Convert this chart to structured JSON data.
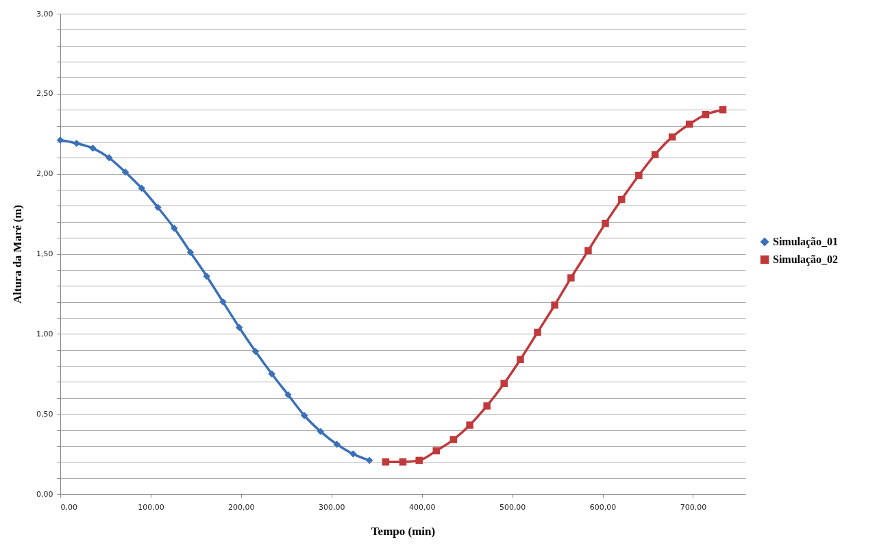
{
  "chart_data": {
    "type": "line",
    "xlabel": "Tempo (min)",
    "ylabel": "Altura da Maré (m)",
    "xlim": [
      0,
      758
    ],
    "ylim": [
      0,
      3
    ],
    "xticks": [
      {
        "value": 0,
        "label": "0,00"
      },
      {
        "value": 100,
        "label": "100,00"
      },
      {
        "value": 200,
        "label": "200,00"
      },
      {
        "value": 300,
        "label": "300,00"
      },
      {
        "value": 400,
        "label": "400,00"
      },
      {
        "value": 500,
        "label": "500,00"
      },
      {
        "value": 600,
        "label": "600,00"
      },
      {
        "value": 700,
        "label": "700,00"
      }
    ],
    "yticks": [
      {
        "value": 0,
        "label": "0,00"
      },
      {
        "value": 0.1,
        "label": null
      },
      {
        "value": 0.2,
        "label": null
      },
      {
        "value": 0.3,
        "label": null
      },
      {
        "value": 0.4,
        "label": null
      },
      {
        "value": 0.5,
        "label": "0,50"
      },
      {
        "value": 0.6,
        "label": null
      },
      {
        "value": 0.7,
        "label": null
      },
      {
        "value": 0.8,
        "label": null
      },
      {
        "value": 0.9,
        "label": null
      },
      {
        "value": 1,
        "label": "1,00"
      },
      {
        "value": 1.1,
        "label": null
      },
      {
        "value": 1.2,
        "label": null
      },
      {
        "value": 1.3,
        "label": null
      },
      {
        "value": 1.4,
        "label": null
      },
      {
        "value": 1.5,
        "label": "1,50"
      },
      {
        "value": 1.6,
        "label": null
      },
      {
        "value": 1.7,
        "label": null
      },
      {
        "value": 1.8,
        "label": null
      },
      {
        "value": 1.9,
        "label": null
      },
      {
        "value": 2,
        "label": "2,00"
      },
      {
        "value": 2.1,
        "label": null
      },
      {
        "value": 2.2,
        "label": null
      },
      {
        "value": 2.3,
        "label": null
      },
      {
        "value": 2.4,
        "label": null
      },
      {
        "value": 2.5,
        "label": "2,50"
      },
      {
        "value": 2.6,
        "label": null
      },
      {
        "value": 2.7,
        "label": null
      },
      {
        "value": 2.8,
        "label": null
      },
      {
        "value": 2.9,
        "label": null
      },
      {
        "value": 3,
        "label": "3,00"
      }
    ],
    "grid": "y",
    "legend": "right",
    "line_style": "solid",
    "series": [
      {
        "name": "Simulação_01",
        "color": "#3a70b8",
        "marker": "diamond",
        "x": [
          0,
          18,
          36,
          54,
          72,
          90,
          108,
          126,
          144,
          162,
          180,
          198,
          216,
          234,
          252,
          270,
          288,
          306,
          324,
          342
        ],
        "values": [
          2.21,
          2.19,
          2.16,
          2.1,
          2.01,
          1.91,
          1.79,
          1.66,
          1.51,
          1.36,
          1.2,
          1.04,
          0.89,
          0.75,
          0.62,
          0.49,
          0.39,
          0.31,
          0.25,
          0.21
        ]
      },
      {
        "name": "Simulação_02",
        "color": "#c0393b",
        "marker": "square",
        "x": [
          360,
          379,
          397,
          416,
          435,
          453,
          472,
          491,
          509,
          528,
          547,
          565,
          584,
          603,
          621,
          640,
          658,
          677,
          696,
          714,
          733
        ],
        "values": [
          0.2,
          0.2,
          0.21,
          0.27,
          0.34,
          0.43,
          0.55,
          0.69,
          0.84,
          1.01,
          1.18,
          1.35,
          1.52,
          1.69,
          1.84,
          1.99,
          2.12,
          2.23,
          2.31,
          2.37,
          2.4
        ]
      }
    ]
  }
}
